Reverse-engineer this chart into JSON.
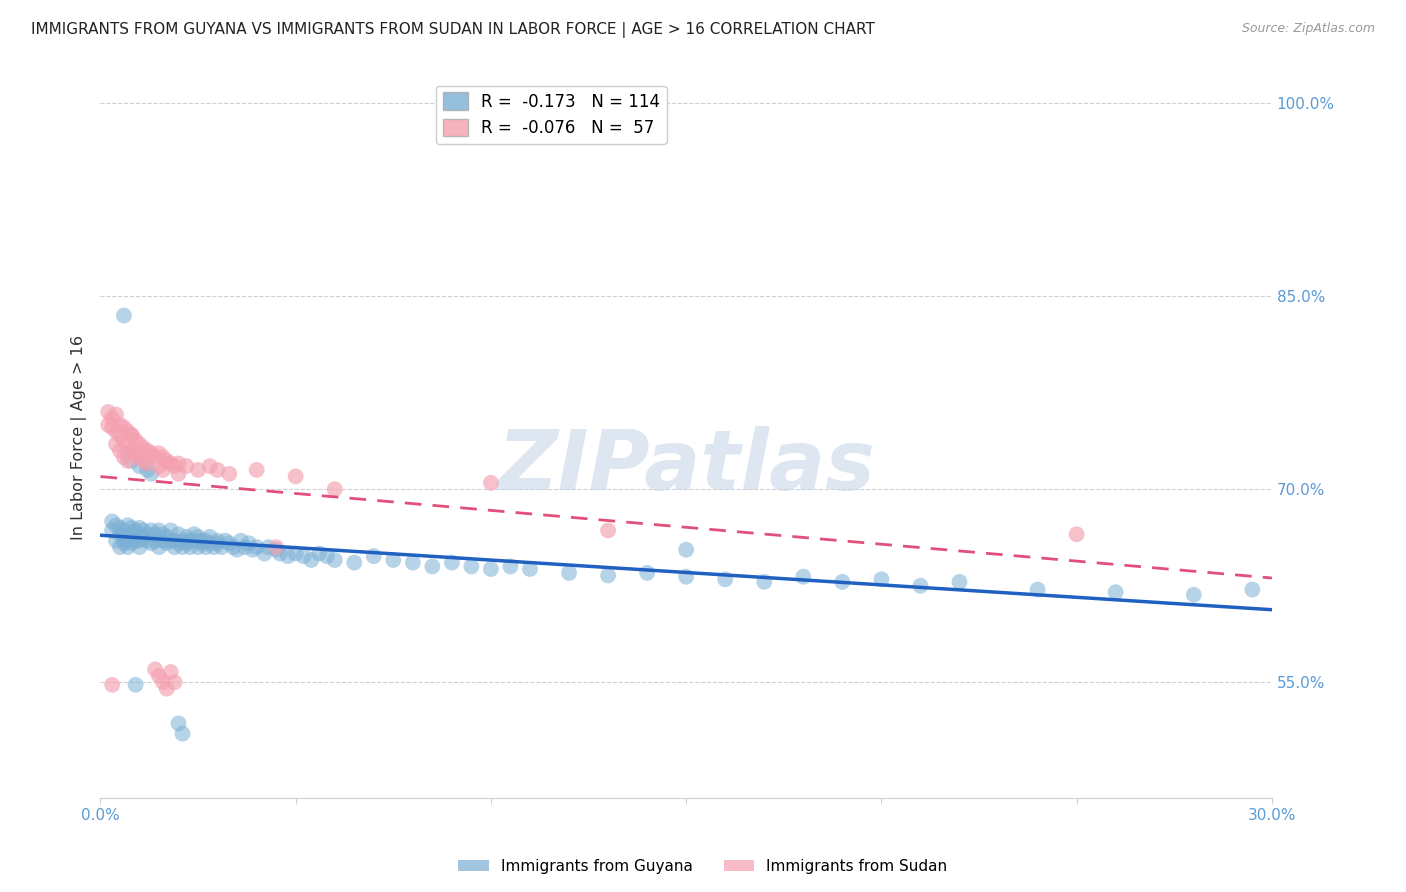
{
  "title": "IMMIGRANTS FROM GUYANA VS IMMIGRANTS FROM SUDAN IN LABOR FORCE | AGE > 16 CORRELATION CHART",
  "source": "Source: ZipAtlas.com",
  "ylabel": "In Labor Force | Age > 16",
  "x_min": 0.0,
  "x_max": 0.3,
  "y_min": 0.46,
  "y_max": 1.02,
  "x_ticks": [
    0.0,
    0.05,
    0.1,
    0.15,
    0.2,
    0.25,
    0.3
  ],
  "y_ticks": [
    0.55,
    0.7,
    0.85,
    1.0
  ],
  "y_tick_labels": [
    "55.0%",
    "70.0%",
    "85.0%",
    "100.0%"
  ],
  "guyana_color": "#7bafd4",
  "sudan_color": "#f4a0b0",
  "guyana_R": -0.173,
  "guyana_N": 114,
  "sudan_R": -0.076,
  "sudan_N": 57,
  "watermark": "ZIPatlas",
  "background_color": "#ffffff",
  "grid_color": "#d0d0d0",
  "tick_color": "#5b9bd5",
  "guyana_line_color": "#2060c0",
  "sudan_line_color": "#e0507a",
  "guyana_scatter": [
    [
      0.003,
      0.675
    ],
    [
      0.003,
      0.668
    ],
    [
      0.004,
      0.672
    ],
    [
      0.004,
      0.66
    ],
    [
      0.005,
      0.665
    ],
    [
      0.005,
      0.67
    ],
    [
      0.005,
      0.655
    ],
    [
      0.006,
      0.662
    ],
    [
      0.006,
      0.668
    ],
    [
      0.006,
      0.658
    ],
    [
      0.007,
      0.672
    ],
    [
      0.007,
      0.66
    ],
    [
      0.007,
      0.655
    ],
    [
      0.008,
      0.665
    ],
    [
      0.008,
      0.67
    ],
    [
      0.008,
      0.658
    ],
    [
      0.009,
      0.66
    ],
    [
      0.009,
      0.668
    ],
    [
      0.009,
      0.663
    ],
    [
      0.01,
      0.665
    ],
    [
      0.01,
      0.66
    ],
    [
      0.01,
      0.67
    ],
    [
      0.01,
      0.655
    ],
    [
      0.011,
      0.662
    ],
    [
      0.011,
      0.668
    ],
    [
      0.012,
      0.66
    ],
    [
      0.012,
      0.665
    ],
    [
      0.013,
      0.658
    ],
    [
      0.013,
      0.668
    ],
    [
      0.014,
      0.665
    ],
    [
      0.014,
      0.66
    ],
    [
      0.015,
      0.668
    ],
    [
      0.015,
      0.655
    ],
    [
      0.016,
      0.66
    ],
    [
      0.016,
      0.665
    ],
    [
      0.017,
      0.658
    ],
    [
      0.017,
      0.663
    ],
    [
      0.018,
      0.66
    ],
    [
      0.018,
      0.668
    ],
    [
      0.019,
      0.655
    ],
    [
      0.019,
      0.66
    ],
    [
      0.02,
      0.658
    ],
    [
      0.02,
      0.665
    ],
    [
      0.021,
      0.66
    ],
    [
      0.021,
      0.655
    ],
    [
      0.022,
      0.663
    ],
    [
      0.022,
      0.658
    ],
    [
      0.023,
      0.66
    ],
    [
      0.023,
      0.655
    ],
    [
      0.024,
      0.665
    ],
    [
      0.024,
      0.66
    ],
    [
      0.025,
      0.655
    ],
    [
      0.025,
      0.663
    ],
    [
      0.026,
      0.66
    ],
    [
      0.026,
      0.658
    ],
    [
      0.027,
      0.655
    ],
    [
      0.027,
      0.66
    ],
    [
      0.028,
      0.658
    ],
    [
      0.028,
      0.663
    ],
    [
      0.029,
      0.655
    ],
    [
      0.03,
      0.66
    ],
    [
      0.03,
      0.658
    ],
    [
      0.031,
      0.655
    ],
    [
      0.032,
      0.66
    ],
    [
      0.033,
      0.658
    ],
    [
      0.034,
      0.655
    ],
    [
      0.035,
      0.653
    ],
    [
      0.036,
      0.66
    ],
    [
      0.037,
      0.655
    ],
    [
      0.038,
      0.658
    ],
    [
      0.039,
      0.653
    ],
    [
      0.04,
      0.655
    ],
    [
      0.042,
      0.65
    ],
    [
      0.043,
      0.655
    ],
    [
      0.045,
      0.653
    ],
    [
      0.046,
      0.65
    ],
    [
      0.048,
      0.648
    ],
    [
      0.05,
      0.65
    ],
    [
      0.052,
      0.648
    ],
    [
      0.054,
      0.645
    ],
    [
      0.056,
      0.65
    ],
    [
      0.058,
      0.648
    ],
    [
      0.06,
      0.645
    ],
    [
      0.065,
      0.643
    ],
    [
      0.07,
      0.648
    ],
    [
      0.075,
      0.645
    ],
    [
      0.08,
      0.643
    ],
    [
      0.085,
      0.64
    ],
    [
      0.09,
      0.643
    ],
    [
      0.095,
      0.64
    ],
    [
      0.1,
      0.638
    ],
    [
      0.105,
      0.64
    ],
    [
      0.11,
      0.638
    ],
    [
      0.12,
      0.635
    ],
    [
      0.13,
      0.633
    ],
    [
      0.14,
      0.635
    ],
    [
      0.15,
      0.632
    ],
    [
      0.16,
      0.63
    ],
    [
      0.17,
      0.628
    ],
    [
      0.18,
      0.632
    ],
    [
      0.19,
      0.628
    ],
    [
      0.2,
      0.63
    ],
    [
      0.21,
      0.625
    ],
    [
      0.22,
      0.628
    ],
    [
      0.24,
      0.622
    ],
    [
      0.26,
      0.62
    ],
    [
      0.28,
      0.618
    ],
    [
      0.295,
      0.622
    ],
    [
      0.006,
      0.835
    ],
    [
      0.007,
      0.728
    ],
    [
      0.008,
      0.722
    ],
    [
      0.01,
      0.718
    ],
    [
      0.012,
      0.715
    ],
    [
      0.013,
      0.712
    ],
    [
      0.009,
      0.548
    ],
    [
      0.02,
      0.518
    ],
    [
      0.021,
      0.51
    ],
    [
      0.15,
      0.653
    ]
  ],
  "sudan_scatter": [
    [
      0.002,
      0.76
    ],
    [
      0.003,
      0.755
    ],
    [
      0.003,
      0.748
    ],
    [
      0.004,
      0.758
    ],
    [
      0.004,
      0.745
    ],
    [
      0.004,
      0.735
    ],
    [
      0.005,
      0.75
    ],
    [
      0.005,
      0.742
    ],
    [
      0.005,
      0.73
    ],
    [
      0.006,
      0.748
    ],
    [
      0.006,
      0.738
    ],
    [
      0.006,
      0.725
    ],
    [
      0.007,
      0.745
    ],
    [
      0.007,
      0.735
    ],
    [
      0.007,
      0.722
    ],
    [
      0.008,
      0.742
    ],
    [
      0.008,
      0.73
    ],
    [
      0.009,
      0.738
    ],
    [
      0.009,
      0.728
    ],
    [
      0.01,
      0.735
    ],
    [
      0.01,
      0.725
    ],
    [
      0.011,
      0.732
    ],
    [
      0.011,
      0.722
    ],
    [
      0.012,
      0.73
    ],
    [
      0.012,
      0.72
    ],
    [
      0.013,
      0.728
    ],
    [
      0.014,
      0.725
    ],
    [
      0.015,
      0.728
    ],
    [
      0.015,
      0.718
    ],
    [
      0.016,
      0.725
    ],
    [
      0.016,
      0.715
    ],
    [
      0.017,
      0.722
    ],
    [
      0.018,
      0.72
    ],
    [
      0.019,
      0.718
    ],
    [
      0.02,
      0.72
    ],
    [
      0.02,
      0.712
    ],
    [
      0.022,
      0.718
    ],
    [
      0.025,
      0.715
    ],
    [
      0.028,
      0.718
    ],
    [
      0.03,
      0.715
    ],
    [
      0.033,
      0.712
    ],
    [
      0.04,
      0.715
    ],
    [
      0.045,
      0.655
    ],
    [
      0.05,
      0.71
    ],
    [
      0.06,
      0.7
    ],
    [
      0.1,
      0.705
    ],
    [
      0.13,
      0.668
    ],
    [
      0.25,
      0.665
    ],
    [
      0.003,
      0.548
    ],
    [
      0.014,
      0.56
    ],
    [
      0.015,
      0.555
    ],
    [
      0.016,
      0.55
    ],
    [
      0.017,
      0.545
    ],
    [
      0.018,
      0.558
    ],
    [
      0.019,
      0.55
    ],
    [
      0.002,
      0.75
    ],
    [
      0.008,
      0.742
    ]
  ]
}
